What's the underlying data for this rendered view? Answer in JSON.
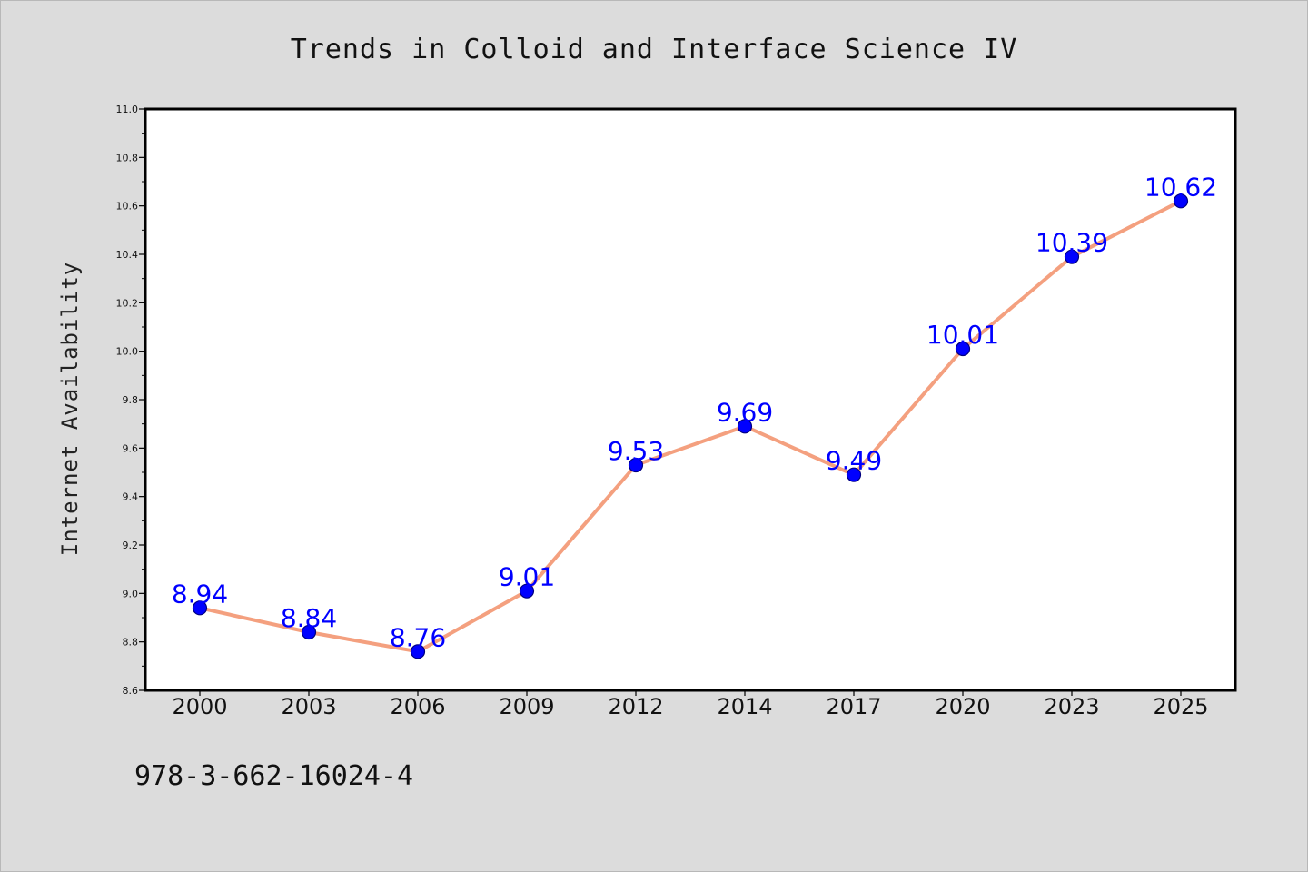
{
  "colors": {
    "background": "#dcdcdc",
    "plot_background": "#ffffff",
    "line": "#f4a07f",
    "marker": "#0000ff",
    "marker_edge": "#000080",
    "data_label": "#0000ff",
    "axis": "#000000"
  },
  "footer": {
    "isbn": "978-3-662-16024-4"
  },
  "chart_data": {
    "type": "line",
    "title": "Trends in Colloid and Interface Science IV",
    "xlabel": "",
    "ylabel": "Internet Availability",
    "categories": [
      "2000",
      "2003",
      "2006",
      "2009",
      "2012",
      "2014",
      "2017",
      "2020",
      "2023",
      "2025"
    ],
    "series": [
      {
        "values": [
          8.94,
          8.84,
          8.76,
          9.01,
          9.53,
          9.69,
          9.49,
          10.01,
          10.39,
          10.62
        ],
        "value_labels": [
          "8.94",
          "8.84",
          "8.76",
          "9.01",
          "9.53",
          "9.69",
          "9.49",
          "10.01",
          "10.39",
          "10.62"
        ]
      }
    ],
    "ylim": [
      8.6,
      11.0
    ],
    "yticks": [
      8.6,
      8.8,
      9.0,
      9.2,
      9.4,
      9.6,
      9.8,
      10.0,
      10.2,
      10.4,
      10.6,
      10.8,
      11.0
    ],
    "ytick_labels": [
      "8.6",
      "8.8",
      "9.0",
      "9.2",
      "9.4",
      "9.6",
      "9.8",
      "10.0",
      "10.2",
      "10.4",
      "10.6",
      "10.8",
      "11.0"
    ],
    "grid": false,
    "legend": "none",
    "data_labels": true
  }
}
